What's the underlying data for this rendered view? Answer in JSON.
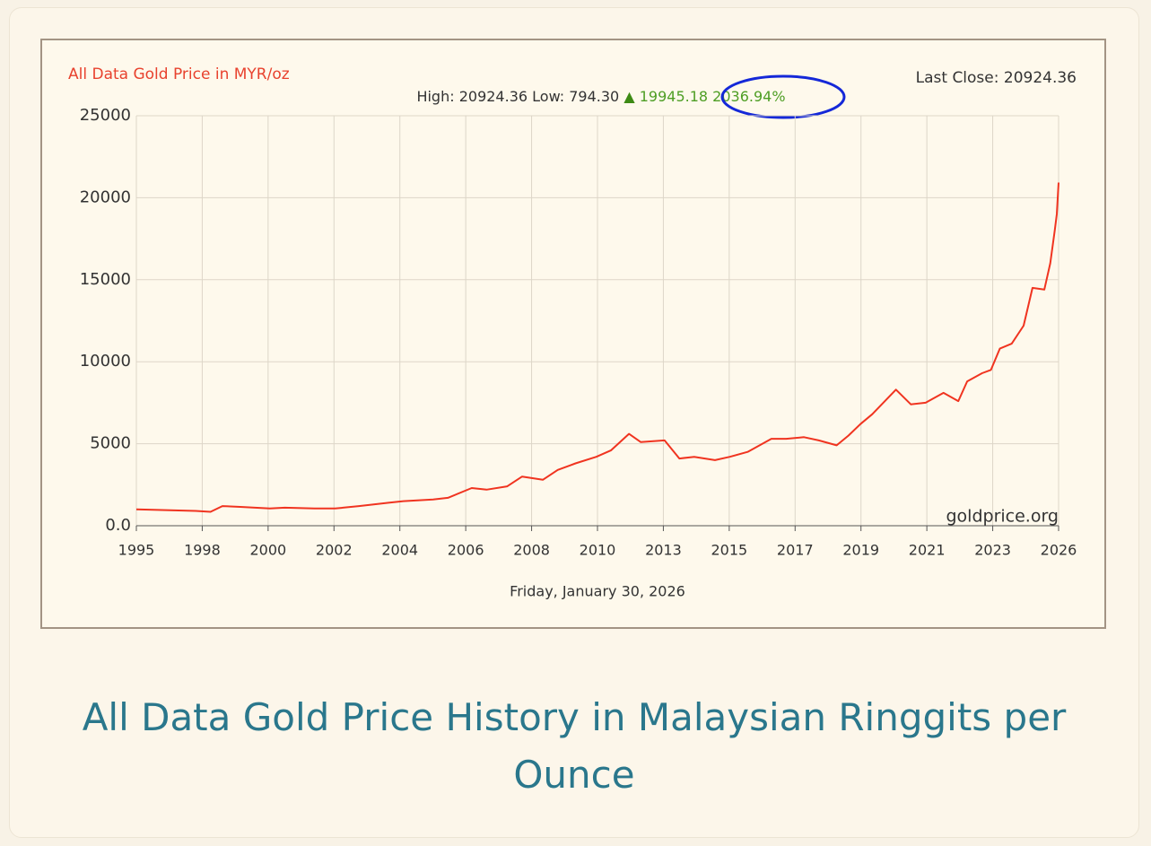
{
  "chart_data": {
    "type": "line",
    "title": "All Data Gold Price in MYR/oz",
    "last_close": "Last Close: 20924.36",
    "stats": {
      "high": "High: 20924.36",
      "low": "Low: 794.30",
      "arrow": "▲",
      "change": "19945.18",
      "change_pct": "2036.94%"
    },
    "watermark": "goldprice.org",
    "x_label": "Friday, January 30, 2026",
    "x": [
      1995.0,
      1996.0,
      1997.0,
      1997.5,
      1997.9,
      1998.5,
      1999.5,
      2000.0,
      2001.0,
      2001.7,
      2002.5,
      2003.5,
      2004.0,
      2005.0,
      2005.5,
      2006.3,
      2006.8,
      2007.5,
      2008.0,
      2008.7,
      2009.2,
      2009.8,
      2010.5,
      2011.0,
      2011.6,
      2012.0,
      2012.8,
      2013.3,
      2013.8,
      2014.5,
      2015.0,
      2015.6,
      2016.4,
      2016.9,
      2017.5,
      2018.0,
      2018.6,
      2019.0,
      2019.4,
      2019.8,
      2020.6,
      2021.1,
      2021.6,
      2022.2,
      2022.7,
      2023.0,
      2023.5,
      2023.8,
      2024.1,
      2024.5,
      2024.9,
      2025.2,
      2025.6,
      2025.8,
      2025.95,
      2026.02,
      2026.08
    ],
    "values": [
      1000,
      950,
      900,
      850,
      1200,
      1150,
      1050,
      1100,
      1050,
      1050,
      1200,
      1400,
      1500,
      1600,
      1700,
      2300,
      2200,
      2400,
      3000,
      2800,
      3400,
      3800,
      4200,
      4600,
      5600,
      5100,
      5200,
      4100,
      4200,
      4000,
      4200,
      4500,
      5300,
      5300,
      5400,
      5200,
      4900,
      5500,
      6200,
      6800,
      8300,
      7400,
      7500,
      8100,
      7600,
      8800,
      9300,
      9500,
      10800,
      11100,
      12200,
      14500,
      14400,
      16000,
      18000,
      19000,
      20924.36
    ],
    "color": "#f03420",
    "xlim": [
      1995.0,
      2026.08
    ],
    "xticks": [
      {
        "value": 1995.0,
        "label": "1995"
      },
      {
        "value": 1997.22,
        "label": "1998"
      },
      {
        "value": 1999.44,
        "label": "2000"
      },
      {
        "value": 2001.66,
        "label": "2002"
      },
      {
        "value": 2003.88,
        "label": "2004"
      },
      {
        "value": 2006.1,
        "label": "2006"
      },
      {
        "value": 2008.32,
        "label": "2008"
      },
      {
        "value": 2010.54,
        "label": "2010"
      },
      {
        "value": 2012.76,
        "label": "2013"
      },
      {
        "value": 2014.98,
        "label": "2015"
      },
      {
        "value": 2017.2,
        "label": "2017"
      },
      {
        "value": 2019.42,
        "label": "2019"
      },
      {
        "value": 2021.64,
        "label": "2021"
      },
      {
        "value": 2023.86,
        "label": "2023"
      },
      {
        "value": 2026.08,
        "label": "2026"
      }
    ],
    "ylim": [
      0,
      25000
    ],
    "yticks": [
      {
        "value": 0,
        "label": "0.0"
      },
      5000,
      10000,
      15000,
      20000,
      25000
    ],
    "grid": true
  },
  "caption": "All Data Gold Price History in Malaysian Ringgits per Ounce"
}
